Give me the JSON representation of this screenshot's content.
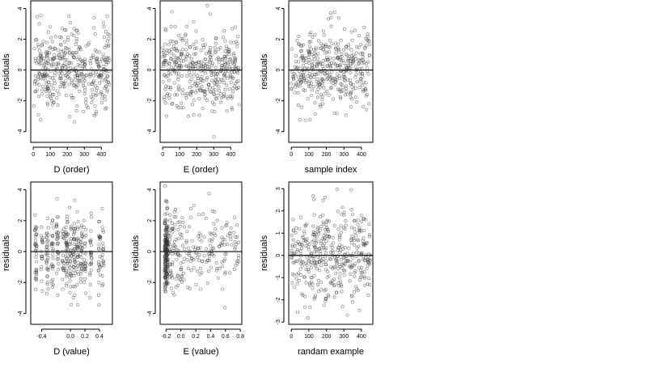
{
  "figure": {
    "panels": [
      {
        "id": "d-order",
        "xlabel": "D (order)",
        "ylabel": "residuals"
      },
      {
        "id": "e-order",
        "xlabel": "E (order)",
        "ylabel": "residuals"
      },
      {
        "id": "sample-index",
        "xlabel": "sample index",
        "ylabel": "residuals"
      },
      {
        "id": "d-value",
        "xlabel": "D (value)",
        "ylabel": "residuals"
      },
      {
        "id": "e-value",
        "xlabel": "E (value)",
        "ylabel": "residuals"
      },
      {
        "id": "randam-example",
        "xlabel": "randam example",
        "ylabel": "residuals"
      }
    ]
  },
  "chart_data": [
    {
      "type": "scatter",
      "xlabel": "D (order)",
      "ylabel": "residuals",
      "xlim": [
        -15,
        465
      ],
      "ylim": [
        -4.7,
        4.5
      ],
      "xticks": [
        0,
        100,
        200,
        300,
        400
      ],
      "xtick_labels": [
        "0",
        "100",
        "200",
        "300",
        "400"
      ],
      "yticks": [
        -4,
        -2,
        0,
        2,
        4
      ],
      "ytick_labels": [
        "-4",
        "-2",
        "0",
        "2",
        "4"
      ],
      "zero_line": 0,
      "grid": false,
      "pattern": {
        "n": 420,
        "x_min": 0,
        "x_max": 450,
        "y_mean": 0,
        "y_sd": 1.3,
        "y_min": -4.4,
        "y_max": 4.3
      }
    },
    {
      "type": "scatter",
      "xlabel": "E (order)",
      "ylabel": "residuals",
      "xlim": [
        -15,
        465
      ],
      "ylim": [
        -4.7,
        4.5
      ],
      "xticks": [
        0,
        100,
        200,
        300,
        400
      ],
      "xtick_labels": [
        "0",
        "100",
        "200",
        "300",
        "400"
      ],
      "yticks": [
        -4,
        -2,
        0,
        2,
        4
      ],
      "ytick_labels": [
        "-4",
        "-2",
        "0",
        "2",
        "4"
      ],
      "zero_line": 0,
      "grid": false,
      "pattern": {
        "n": 420,
        "x_min": 0,
        "x_max": 450,
        "y_mean": 0,
        "y_sd": 1.3,
        "y_min": -4.4,
        "y_max": 4.3
      }
    },
    {
      "type": "scatter",
      "xlabel": "sample index",
      "ylabel": "residuals",
      "xlim": [
        -15,
        465
      ],
      "ylim": [
        -4.7,
        4.5
      ],
      "xticks": [
        0,
        100,
        200,
        300,
        400
      ],
      "xtick_labels": [
        "0",
        "100",
        "200",
        "300",
        "400"
      ],
      "yticks": [
        -4,
        -2,
        0,
        2,
        4
      ],
      "ytick_labels": [
        "-4",
        "-2",
        "0",
        "2",
        "4"
      ],
      "zero_line": 0,
      "grid": false,
      "pattern": {
        "n": 420,
        "x_min": 0,
        "x_max": 450,
        "y_mean": 0,
        "y_sd": 1.3,
        "y_min": -4.4,
        "y_max": 4.3
      }
    },
    {
      "type": "scatter",
      "xlabel": "D (value)",
      "ylabel": "residuals",
      "xlim": [
        -0.55,
        0.58
      ],
      "ylim": [
        -4.7,
        4.5
      ],
      "xticks": [
        -0.4,
        0,
        0.2,
        0.4
      ],
      "xtick_labels": [
        "-0.4",
        "0.0",
        "0.2",
        "0.4"
      ],
      "yticks": [
        -4,
        -2,
        0,
        2,
        4
      ],
      "ytick_labels": [
        "-4",
        "-2",
        "0",
        "2",
        "4"
      ],
      "zero_line": 0,
      "grid": false,
      "pattern": {
        "n": 420,
        "x_values": [
          -0.48,
          -0.4,
          -0.32,
          -0.25,
          -0.18,
          -0.1,
          -0.05,
          0.0,
          0.05,
          0.1,
          0.15,
          0.2,
          0.28,
          0.4,
          0.45
        ],
        "y_mean": 0,
        "y_sd": 1.3,
        "y_min": -4.4,
        "y_max": 4.3
      }
    },
    {
      "type": "scatter",
      "xlabel": "E (value)",
      "ylabel": "residuals",
      "xlim": [
        -0.28,
        0.82
      ],
      "ylim": [
        -4.7,
        4.5
      ],
      "xticks": [
        -0.2,
        0,
        0.2,
        0.4,
        0.6,
        0.8
      ],
      "xtick_labels": [
        "-0.2",
        "0.0",
        "0.2",
        "0.4",
        "0.6",
        "0.8"
      ],
      "yticks": [
        -4,
        -2,
        0,
        2,
        4
      ],
      "ytick_labels": [
        "-4",
        "-2",
        "0",
        "2",
        "4"
      ],
      "zero_line": 0,
      "grid": false,
      "pattern": {
        "n": 420,
        "x_min": -0.22,
        "x_max": 0.78,
        "x_cluster": -0.2,
        "y_mean": 0,
        "y_sd": 1.3,
        "y_min": -4.4,
        "y_max": 4.3
      }
    },
    {
      "type": "scatter",
      "xlabel": "randam example",
      "ylabel": "residuals",
      "xlim": [
        -15,
        465
      ],
      "ylim": [
        -3.1,
        3.3
      ],
      "xticks": [
        0,
        100,
        200,
        300,
        400
      ],
      "xtick_labels": [
        "0",
        "100",
        "200",
        "300",
        "400"
      ],
      "yticks": [
        -3,
        -2,
        -1,
        0,
        1,
        2,
        3
      ],
      "ytick_labels": [
        "-3",
        "-2",
        "-1",
        "0",
        "1",
        "2",
        "3"
      ],
      "zero_line": 0,
      "grid": false,
      "pattern": {
        "n": 420,
        "x_min": 0,
        "x_max": 450,
        "y_mean": 0,
        "y_sd": 1.0,
        "y_min": -2.9,
        "y_max": 3.1
      }
    }
  ]
}
